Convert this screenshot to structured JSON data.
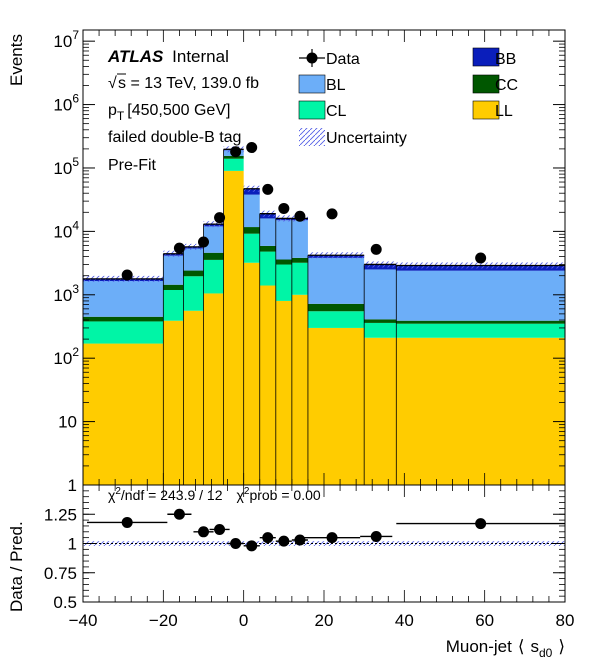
{
  "chart_data": [
    {
      "type": "bar",
      "subtype": "stacked-histogram",
      "yscale": "log",
      "ylabel": "Events",
      "ylim": [
        1,
        15000000
      ],
      "xlim": [
        -40,
        80
      ],
      "x_edges": [
        -40,
        -20,
        -15,
        -10,
        -5,
        0,
        4,
        8,
        12,
        16,
        30,
        38,
        80
      ],
      "y_ticks": [
        {
          "v": 1,
          "b": "1",
          "e": ""
        },
        {
          "v": 10,
          "b": "10",
          "e": ""
        },
        {
          "v": 100,
          "b": "10",
          "e": "2"
        },
        {
          "v": 1000,
          "b": "10",
          "e": "3"
        },
        {
          "v": 10000,
          "b": "10",
          "e": "4"
        },
        {
          "v": 100000,
          "b": "10",
          "e": "5"
        },
        {
          "v": 1000000,
          "b": "10",
          "e": "6"
        },
        {
          "v": 10000000,
          "b": "10",
          "e": "7"
        }
      ],
      "series": [
        {
          "name": "LL",
          "color": "#ffcc00",
          "values": [
            170,
            390,
            560,
            1050,
            90000,
            3200,
            1400,
            800,
            1000,
            300,
            210,
            210
          ]
        },
        {
          "name": "CL",
          "color": "#00f5a6",
          "values": [
            210,
            800,
            1400,
            2500,
            50000,
            6000,
            3400,
            2200,
            2200,
            250,
            150,
            140
          ]
        },
        {
          "name": "CC",
          "color": "#005700",
          "values": [
            70,
            250,
            450,
            1050,
            15000,
            2500,
            1100,
            600,
            620,
            170,
            50,
            40
          ]
        },
        {
          "name": "BL",
          "color": "#6caef8",
          "values": [
            1200,
            2700,
            2950,
            7400,
            35000,
            26300,
            10100,
            11400,
            11180,
            3100,
            2100,
            2010
          ]
        },
        {
          "name": "BB",
          "color": "#0a1ebb",
          "values": [
            130,
            300,
            340,
            1000,
            7000,
            9000,
            3000,
            1000,
            1000,
            380,
            500,
            500
          ]
        }
      ],
      "data": {
        "name": "Data",
        "x": [
          -29,
          -16,
          -10,
          -6,
          -2,
          2,
          6,
          10,
          14,
          22,
          33,
          59
        ],
        "y": [
          2050,
          5450,
          6800,
          16500,
          180000,
          210000,
          46000,
          23000,
          17300,
          18900,
          5200,
          3800
        ]
      },
      "legend": [
        "Data",
        "BL",
        "CL",
        "Uncertainty",
        "BB",
        "CC",
        "LL"
      ]
    },
    {
      "type": "scatter",
      "ylabel": "Data / Pred.",
      "xlabel": "Muon-jet ⟨s_d0⟩",
      "ylim": [
        0.5,
        1.5
      ],
      "xlim": [
        -40,
        80
      ],
      "reference_line": 1.0,
      "x_ticks": [
        "−40",
        "−20",
        "0",
        "20",
        "40",
        "60",
        "80"
      ],
      "y_ticks": [
        "0.5",
        "0.75",
        "1",
        "1.25"
      ],
      "x": [
        -29,
        -16,
        -10,
        -6,
        -2,
        2,
        6,
        10,
        14,
        22,
        33,
        59
      ],
      "x_err": [
        10,
        3,
        2.5,
        2.5,
        2,
        2,
        2,
        2,
        2,
        7,
        4,
        21
      ],
      "y": [
        1.18,
        1.25,
        1.1,
        1.12,
        1.0,
        0.98,
        1.05,
        1.02,
        1.03,
        1.05,
        1.06,
        1.17
      ],
      "y_err": [
        0.025,
        0.015,
        0.013,
        0.008,
        0.002,
        0.002,
        0.005,
        0.007,
        0.008,
        0.007,
        0.013,
        0.016
      ],
      "annotation": {
        "chi2ndf_value": "= 243.9 / 12",
        "chi2prob_value": "prob = 0.00"
      }
    }
  ],
  "text": {
    "y_axis_label": "Events",
    "ratio_y_label": "Data / Pred.",
    "x_axis_prefix": "Muon-jet",
    "x_axis_lang": "⟨",
    "x_axis_s": "s",
    "x_axis_sub": "d0",
    "x_axis_rang": "⟩",
    "atlas": "ATLAS",
    "internal": "Internal",
    "energy": "s = 13 TeV, 139.0 fb",
    "pt_p": "p",
    "pt_t": "T",
    "pt_range": "[450,500 GeV]",
    "tag": "failed double-B tag",
    "fit": "Pre-Fit",
    "chi_prefix": "χ",
    "chi_exp": "2",
    "chi_ndf": "/ndf = 243.9 / 12",
    "chi_prob": "prob = 0.00"
  }
}
